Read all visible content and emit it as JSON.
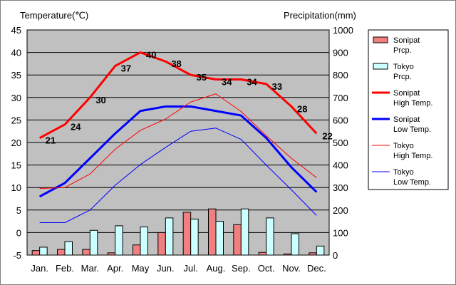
{
  "chart_data": {
    "type": "bar+line",
    "left_axis_label": "Temperature(℃)",
    "right_axis_label": "Precipitation(mm)",
    "categories": [
      "Jan.",
      "Feb.",
      "Mar.",
      "Apr.",
      "May",
      "Jun.",
      "Jul.",
      "Aug.",
      "Sep.",
      "Oct.",
      "Nov.",
      "Dec."
    ],
    "y_left": {
      "min": -5,
      "max": 45,
      "ticks": [
        45,
        40,
        35,
        30,
        25,
        20,
        15,
        10,
        5,
        0,
        -5
      ]
    },
    "y_right": {
      "min": 0,
      "max": 1000,
      "ticks": [
        1000,
        900,
        800,
        700,
        600,
        500,
        400,
        300,
        200,
        100,
        0
      ]
    },
    "grid": true,
    "legend_position": "right",
    "bar_series": [
      {
        "name": "Sonipat\nPrcp.",
        "color": "#f08080",
        "values": [
          20,
          25,
          25,
          10,
          45,
          100,
          190,
          205,
          135,
          12,
          5,
          10
        ]
      },
      {
        "name": "Tokyo\nPrcp.",
        "color": "#ccffff",
        "values": [
          35,
          60,
          110,
          130,
          125,
          165,
          160,
          150,
          205,
          165,
          95,
          40
        ]
      }
    ],
    "line_series": [
      {
        "name": "Sonipat\nHigh Temp.",
        "color": "#ff0000",
        "width": 3,
        "values": [
          21,
          24,
          30,
          37,
          40,
          38,
          35,
          34,
          34,
          33,
          28,
          22
        ],
        "labels": [
          "21",
          "24",
          "30",
          "37",
          "40",
          "38",
          "35",
          "34",
          "34",
          "33",
          "28",
          "22"
        ]
      },
      {
        "name": "Sonipat\nLow Temp.",
        "color": "#0000ff",
        "width": 3,
        "values": [
          8,
          11,
          16.5,
          22,
          27,
          28,
          28,
          27,
          26,
          21,
          14.5,
          9
        ]
      },
      {
        "name": "Tokyo\nHigh Temp.",
        "color": "#ff0000",
        "width": 1,
        "values": [
          9.8,
          10,
          13,
          18.5,
          22.7,
          25.2,
          29,
          30.8,
          26.9,
          21.5,
          16.5,
          12.2
        ]
      },
      {
        "name": "Tokyo\nLow Temp.",
        "color": "#0000ff",
        "width": 1,
        "values": [
          2.2,
          2.2,
          5,
          10.5,
          15.1,
          18.9,
          22.5,
          23.2,
          20.7,
          15,
          9.5,
          3.8
        ]
      }
    ]
  }
}
